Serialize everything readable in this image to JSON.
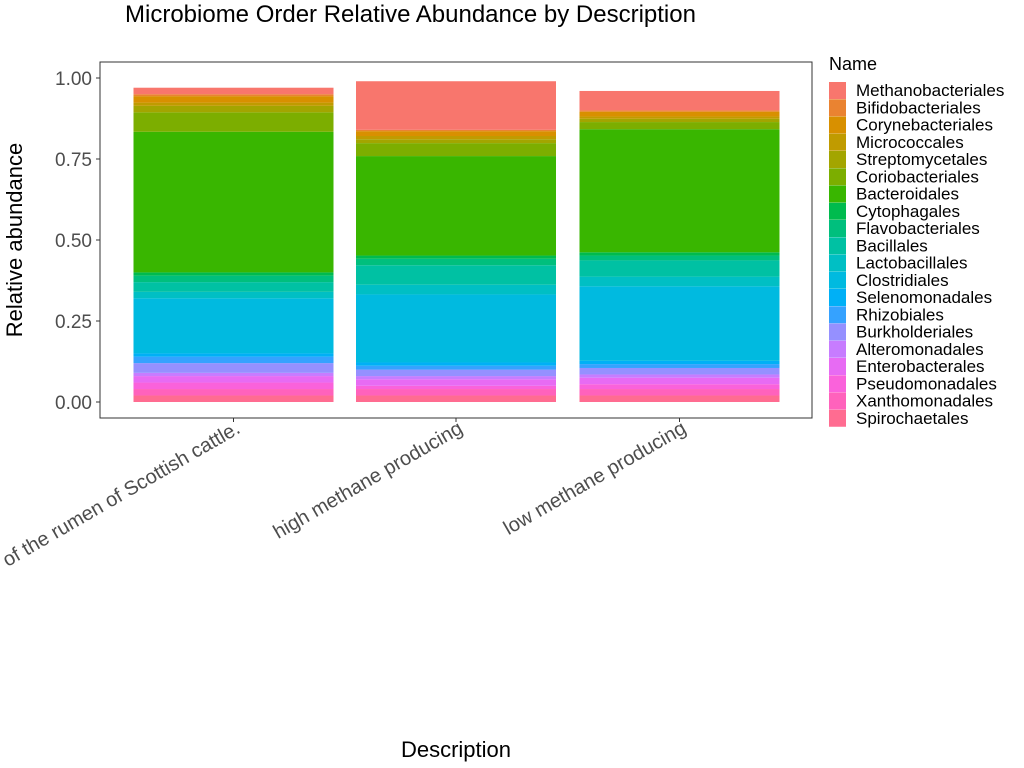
{
  "chart_data": {
    "type": "bar",
    "stacked": true,
    "title": "Microbiome Order Relative Abundance by Description",
    "xlabel": "Description",
    "ylabel": "Relative abundance",
    "ylim": [
      0,
      1
    ],
    "yticks": [
      "0.00",
      "0.25",
      "0.50",
      "0.75",
      "1.00"
    ],
    "categories": [
      "of the rumen of Scottish cattle.",
      "high methane producing",
      "low methane producing"
    ],
    "legend_title": "Name",
    "legend_position": "right",
    "grid": false,
    "series": [
      {
        "name": "Methanobacteriales",
        "color": "#F8766D",
        "values": [
          0.02,
          0.15,
          0.06
        ]
      },
      {
        "name": "Bifidobacteriales",
        "color": "#EA8331",
        "values": [
          0.006,
          0.004,
          0.004
        ]
      },
      {
        "name": "Corynebacteriales",
        "color": "#D89000",
        "values": [
          0.02,
          0.015,
          0.015
        ]
      },
      {
        "name": "Micrococcales",
        "color": "#C09B00",
        "values": [
          0.01,
          0.01,
          0.007
        ]
      },
      {
        "name": "Streptomycetales",
        "color": "#A3A500",
        "values": [
          0.02,
          0.012,
          0.01
        ]
      },
      {
        "name": "Coriobacteriales",
        "color": "#7CAE00",
        "values": [
          0.06,
          0.04,
          0.022
        ]
      },
      {
        "name": "Bacteroidales",
        "color": "#39B600",
        "values": [
          0.434,
          0.307,
          0.38
        ]
      },
      {
        "name": "Cytophagales",
        "color": "#00BB4E",
        "values": [
          0.01,
          0.01,
          0.01
        ]
      },
      {
        "name": "Flavobacteriales",
        "color": "#00BF7D",
        "values": [
          0.02,
          0.02,
          0.015
        ]
      },
      {
        "name": "Bacillales",
        "color": "#00C1A3",
        "values": [
          0.03,
          0.06,
          0.05
        ]
      },
      {
        "name": "Lactobacillales",
        "color": "#00BFC4",
        "values": [
          0.02,
          0.03,
          0.03
        ]
      },
      {
        "name": "Clostridiales",
        "color": "#00BAE0",
        "values": [
          0.17,
          0.21,
          0.23
        ]
      },
      {
        "name": "Selenomonadales",
        "color": "#00B0F6",
        "values": [
          0.01,
          0.01,
          0.01
        ]
      },
      {
        "name": "Rhizobiales",
        "color": "#35A2FF",
        "values": [
          0.02,
          0.012,
          0.012
        ]
      },
      {
        "name": "Burkholderiales",
        "color": "#9590FF",
        "values": [
          0.03,
          0.02,
          0.02
        ]
      },
      {
        "name": "Alteromonadales",
        "color": "#C77CFF",
        "values": [
          0.01,
          0.01,
          0.01
        ]
      },
      {
        "name": "Enterobacterales",
        "color": "#E76BF3",
        "values": [
          0.02,
          0.02,
          0.02
        ]
      },
      {
        "name": "Pseudomonadales",
        "color": "#FA62DB",
        "values": [
          0.02,
          0.01,
          0.015
        ]
      },
      {
        "name": "Xanthomonadales",
        "color": "#FF62BC",
        "values": [
          0.02,
          0.02,
          0.02
        ]
      },
      {
        "name": "Spirochaetales",
        "color": "#FF6C91",
        "values": [
          0.02,
          0.02,
          0.02
        ]
      }
    ]
  }
}
